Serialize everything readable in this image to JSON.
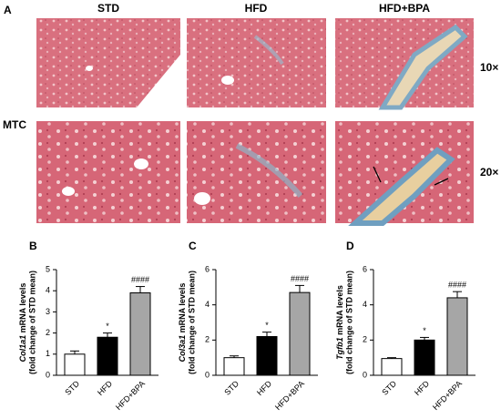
{
  "panel_a": {
    "label": "A",
    "columns": [
      "STD",
      "HFD",
      "HFD+BPA"
    ],
    "rows": [
      "10×",
      "20×"
    ],
    "stain": "MTC"
  },
  "chart_data": [
    {
      "type": "bar",
      "panel_label": "B",
      "ylabel_gene": "Col1a1",
      "ylabel_rest": " mRNA levels",
      "ylabel_line2": "(fold change of STD mean)",
      "categories": [
        "STD",
        "HFD",
        "HFD+BPA"
      ],
      "values": [
        1.0,
        1.8,
        3.9
      ],
      "errors": [
        0.15,
        0.2,
        0.3
      ],
      "colors": [
        "#ffffff",
        "#000000",
        "#a6a6a6"
      ],
      "significance": [
        null,
        "*",
        "####"
      ],
      "ylim": [
        0,
        5
      ],
      "yticks": [
        0,
        1,
        2,
        3,
        4,
        5
      ]
    },
    {
      "type": "bar",
      "panel_label": "C",
      "ylabel_gene": "Col3a1",
      "ylabel_rest": " mRNA levels",
      "ylabel_line2": "(fold change of STD mean)",
      "categories": [
        "STD",
        "HFD",
        "HFD+BPA"
      ],
      "values": [
        1.0,
        2.2,
        4.7
      ],
      "errors": [
        0.1,
        0.25,
        0.4
      ],
      "colors": [
        "#ffffff",
        "#000000",
        "#a6a6a6"
      ],
      "significance": [
        null,
        "*",
        "####"
      ],
      "ylim": [
        0,
        6
      ],
      "yticks": [
        0,
        2,
        4,
        6
      ]
    },
    {
      "type": "bar",
      "panel_label": "D",
      "ylabel_gene": "Tgfb1",
      "ylabel_rest": " mRNA levels",
      "ylabel_line2": "(fold change of STD mean)",
      "categories": [
        "STD",
        "HFD",
        "HFD+BPA"
      ],
      "values": [
        0.95,
        2.0,
        4.4
      ],
      "errors": [
        0.05,
        0.15,
        0.35
      ],
      "colors": [
        "#ffffff",
        "#000000",
        "#a6a6a6"
      ],
      "significance": [
        null,
        "*",
        "####"
      ],
      "ylim": [
        0,
        6
      ],
      "yticks": [
        0,
        2,
        4,
        6
      ]
    }
  ]
}
